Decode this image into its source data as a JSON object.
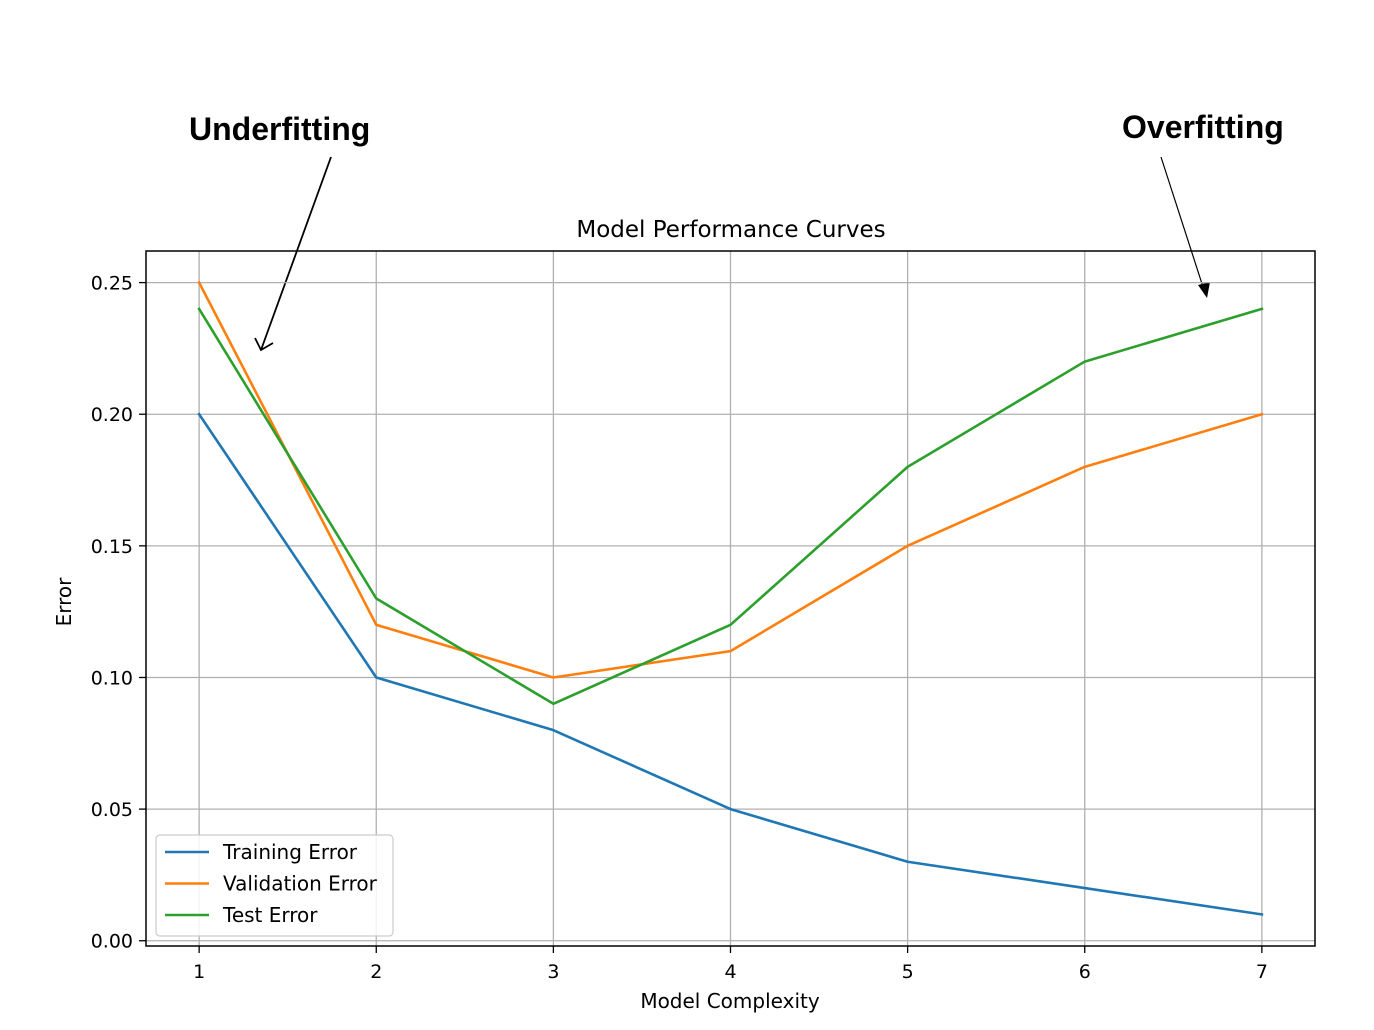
{
  "annotations": {
    "left": "Underfitting",
    "right": "Overfitting"
  },
  "chart_data": {
    "type": "line",
    "title": "Model Performance Curves",
    "xlabel": "Model Complexity",
    "ylabel": "Error",
    "x": [
      1,
      2,
      3,
      4,
      5,
      6,
      7
    ],
    "xlim": [
      0.7,
      7.3
    ],
    "ylim": [
      -0.002,
      0.262
    ],
    "yticks": [
      0.0,
      0.05,
      0.1,
      0.15,
      0.2,
      0.25
    ],
    "ytick_labels": [
      "0.00",
      "0.05",
      "0.10",
      "0.15",
      "0.20",
      "0.25"
    ],
    "xticks": [
      1,
      2,
      3,
      4,
      5,
      6,
      7
    ],
    "xtick_labels": [
      "1",
      "2",
      "3",
      "4",
      "5",
      "6",
      "7"
    ],
    "grid": true,
    "legend_position": "lower-left",
    "series": [
      {
        "name": "Training Error",
        "color": "#1f77b4",
        "values": [
          0.2,
          0.1,
          0.08,
          0.05,
          0.03,
          0.02,
          0.01
        ]
      },
      {
        "name": "Validation Error",
        "color": "#ff7f0e",
        "values": [
          0.25,
          0.12,
          0.1,
          0.11,
          0.15,
          0.18,
          0.2
        ]
      },
      {
        "name": "Test Error",
        "color": "#2ca02c",
        "values": [
          0.24,
          0.13,
          0.09,
          0.12,
          0.18,
          0.22,
          0.24
        ]
      }
    ]
  }
}
